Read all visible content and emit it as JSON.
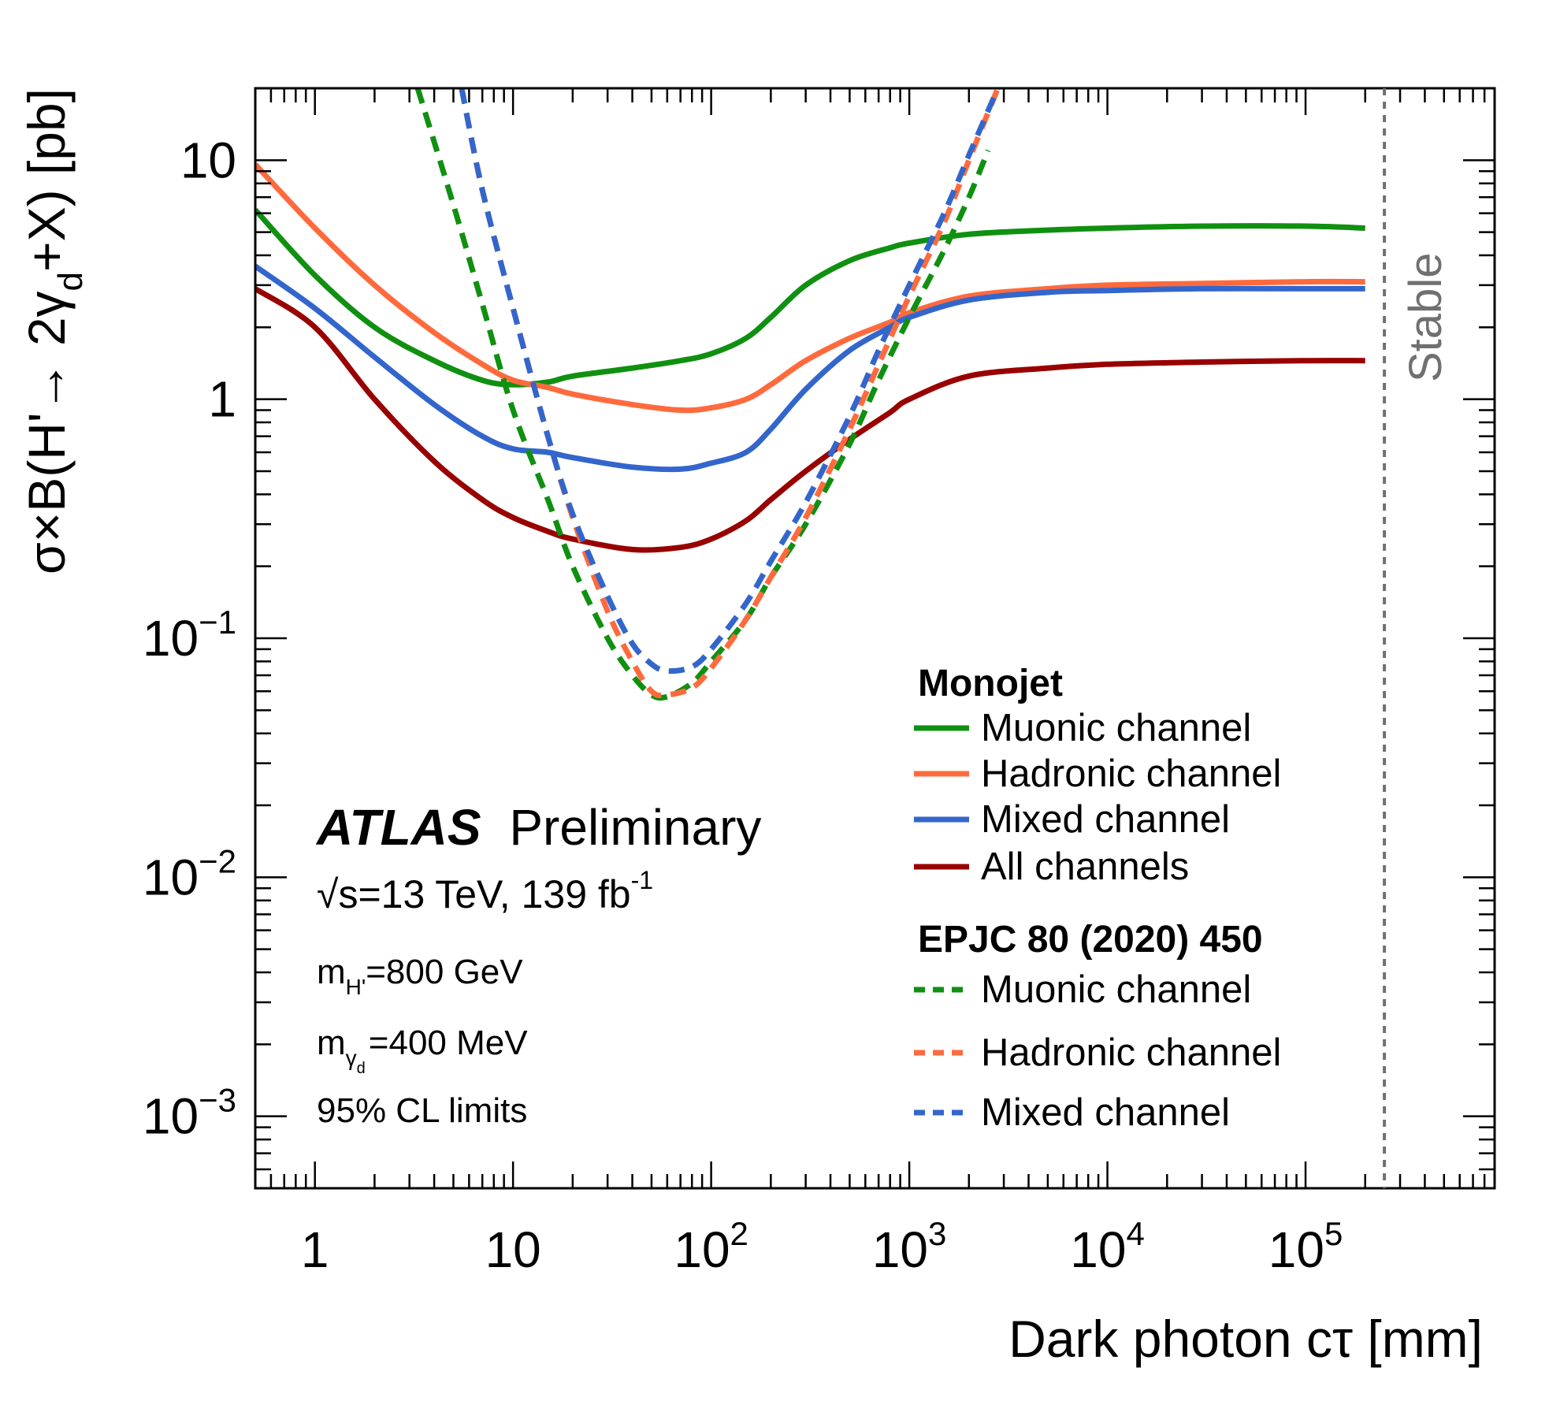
{
  "chart_data": {
    "type": "line",
    "x_scale": "log",
    "y_scale": "log",
    "xlim": [
      0.5,
      900000
    ],
    "ylim": [
      0.0005,
      20
    ],
    "xlabel": "Dark photon cτ [mm]",
    "ylabel": "σ×B(H'→ 2γ_d+X) [pb]",
    "x_ticks": [
      {
        "value": 1,
        "base": "1",
        "exp": ""
      },
      {
        "value": 10,
        "base": "10",
        "exp": ""
      },
      {
        "value": 100,
        "base": "10",
        "exp": "2"
      },
      {
        "value": 1000,
        "base": "10",
        "exp": "3"
      },
      {
        "value": 10000,
        "base": "10",
        "exp": "4"
      },
      {
        "value": 100000,
        "base": "10",
        "exp": "5"
      }
    ],
    "y_ticks": [
      {
        "value": 0.001,
        "base": "10",
        "exp": "−3"
      },
      {
        "value": 0.01,
        "base": "10",
        "exp": "−2"
      },
      {
        "value": 0.1,
        "base": "10",
        "exp": "−1"
      },
      {
        "value": 1,
        "base": "1",
        "exp": ""
      },
      {
        "value": 10,
        "base": "10",
        "exp": ""
      }
    ],
    "vertical_line": {
      "x": 250000,
      "label": "Stable",
      "color": "#707070"
    },
    "series": [
      {
        "name": "Muonic channel",
        "group": "Monojet",
        "style": "solid",
        "color": "#109010",
        "x": [
          0.5,
          1,
          2,
          4,
          7,
          10,
          15,
          20,
          40,
          70,
          100,
          150,
          200,
          300,
          500,
          800,
          1000,
          2000,
          5000,
          10000,
          30000,
          100000,
          200000
        ],
        "y": [
          6.2,
          3.3,
          2.0,
          1.45,
          1.2,
          1.15,
          1.18,
          1.25,
          1.35,
          1.45,
          1.55,
          1.8,
          2.2,
          3.0,
          3.8,
          4.3,
          4.5,
          4.9,
          5.1,
          5.2,
          5.3,
          5.3,
          5.2
        ]
      },
      {
        "name": "Hadronic channel",
        "group": "Monojet",
        "style": "solid",
        "color": "#ff6a3d",
        "x": [
          0.5,
          1,
          2,
          4,
          7,
          10,
          15,
          20,
          40,
          70,
          100,
          150,
          200,
          300,
          500,
          800,
          1000,
          2000,
          5000,
          10000,
          30000,
          100000,
          200000
        ],
        "y": [
          9.6,
          5.2,
          3.0,
          1.9,
          1.4,
          1.2,
          1.12,
          1.05,
          0.95,
          0.9,
          0.92,
          1.0,
          1.15,
          1.45,
          1.8,
          2.1,
          2.3,
          2.7,
          2.9,
          3.0,
          3.05,
          3.1,
          3.1
        ]
      },
      {
        "name": "Mixed channel",
        "group": "Monojet",
        "style": "solid",
        "color": "#3366cc",
        "x": [
          0.5,
          1,
          2,
          4,
          7,
          10,
          15,
          20,
          40,
          70,
          100,
          150,
          200,
          300,
          500,
          800,
          1000,
          2000,
          5000,
          10000,
          30000,
          100000,
          200000
        ],
        "y": [
          3.6,
          2.4,
          1.5,
          0.95,
          0.7,
          0.62,
          0.6,
          0.57,
          0.52,
          0.51,
          0.54,
          0.6,
          0.75,
          1.1,
          1.6,
          2.0,
          2.2,
          2.6,
          2.8,
          2.85,
          2.9,
          2.9,
          2.9
        ]
      },
      {
        "name": "All channels",
        "group": "Monojet",
        "style": "solid",
        "color": "#990000",
        "x": [
          0.5,
          1,
          2,
          4,
          7,
          10,
          15,
          20,
          40,
          70,
          100,
          150,
          200,
          300,
          500,
          800,
          1000,
          2000,
          5000,
          10000,
          30000,
          100000,
          200000
        ],
        "y": [
          2.9,
          2.0,
          1.0,
          0.55,
          0.38,
          0.32,
          0.28,
          0.26,
          0.235,
          0.24,
          0.26,
          0.31,
          0.38,
          0.5,
          0.68,
          0.88,
          1.0,
          1.25,
          1.35,
          1.4,
          1.43,
          1.45,
          1.45
        ]
      },
      {
        "name": "Muonic channel",
        "group": "EPJC 80 (2020) 450",
        "style": "dashed",
        "color": "#109010",
        "x": [
          3.3,
          5,
          7,
          10,
          15,
          20,
          30,
          40,
          50,
          60,
          80,
          100,
          150,
          200,
          300,
          500,
          700,
          1000,
          1500,
          2000,
          2500
        ],
        "y": [
          20,
          6.5,
          2.5,
          0.9,
          0.38,
          0.2,
          0.1,
          0.07,
          0.058,
          0.057,
          0.065,
          0.08,
          0.12,
          0.18,
          0.3,
          0.65,
          1.2,
          2.2,
          4.2,
          7.0,
          11.0
        ]
      },
      {
        "name": "Hadronic channel",
        "group": "EPJC 80 (2020) 450",
        "style": "dashed",
        "color": "#ff6a3d",
        "x": [
          5.5,
          7,
          10,
          15,
          20,
          30,
          40,
          50,
          60,
          80,
          100,
          150,
          200,
          300,
          500,
          700,
          1000,
          1500,
          2000,
          2800
        ],
        "y": [
          20,
          7.5,
          2.4,
          0.7,
          0.32,
          0.13,
          0.08,
          0.06,
          0.058,
          0.062,
          0.075,
          0.12,
          0.18,
          0.32,
          0.75,
          1.4,
          2.7,
          5.5,
          10.0,
          20.0
        ]
      },
      {
        "name": "Mixed channel",
        "group": "EPJC 80 (2020) 450",
        "style": "dashed",
        "color": "#3366cc",
        "x": [
          5.5,
          7,
          10,
          15,
          20,
          30,
          40,
          50,
          60,
          80,
          100,
          150,
          200,
          300,
          500,
          700,
          1000,
          1500,
          2000,
          2800
        ],
        "y": [
          20,
          7.5,
          2.4,
          0.7,
          0.33,
          0.15,
          0.095,
          0.078,
          0.073,
          0.076,
          0.09,
          0.14,
          0.21,
          0.37,
          0.85,
          1.6,
          3.0,
          6.0,
          10.5,
          20.0
        ]
      }
    ],
    "legend": {
      "placement": "bottom-right",
      "groups": [
        {
          "title": "Monojet",
          "entries": [
            0,
            1,
            2,
            3
          ]
        },
        {
          "title": "EPJC 80 (2020) 450",
          "entries": [
            4,
            5,
            6
          ]
        }
      ]
    },
    "annotations": {
      "atlas": "ATLAS",
      "preliminary": "Preliminary",
      "sqrt_s": "√s=13 TeV, 139 fb",
      "lumi_exp": "-1",
      "mass_h_prefix": "m",
      "mass_h_sub": "H'",
      "mass_h_value": "=800 GeV",
      "mass_gd_prefix": "m",
      "mass_gd_sub": "γ",
      "mass_gd_subsub": "d",
      "mass_gd_value": "=400 MeV",
      "cl": "95% CL limits"
    }
  }
}
